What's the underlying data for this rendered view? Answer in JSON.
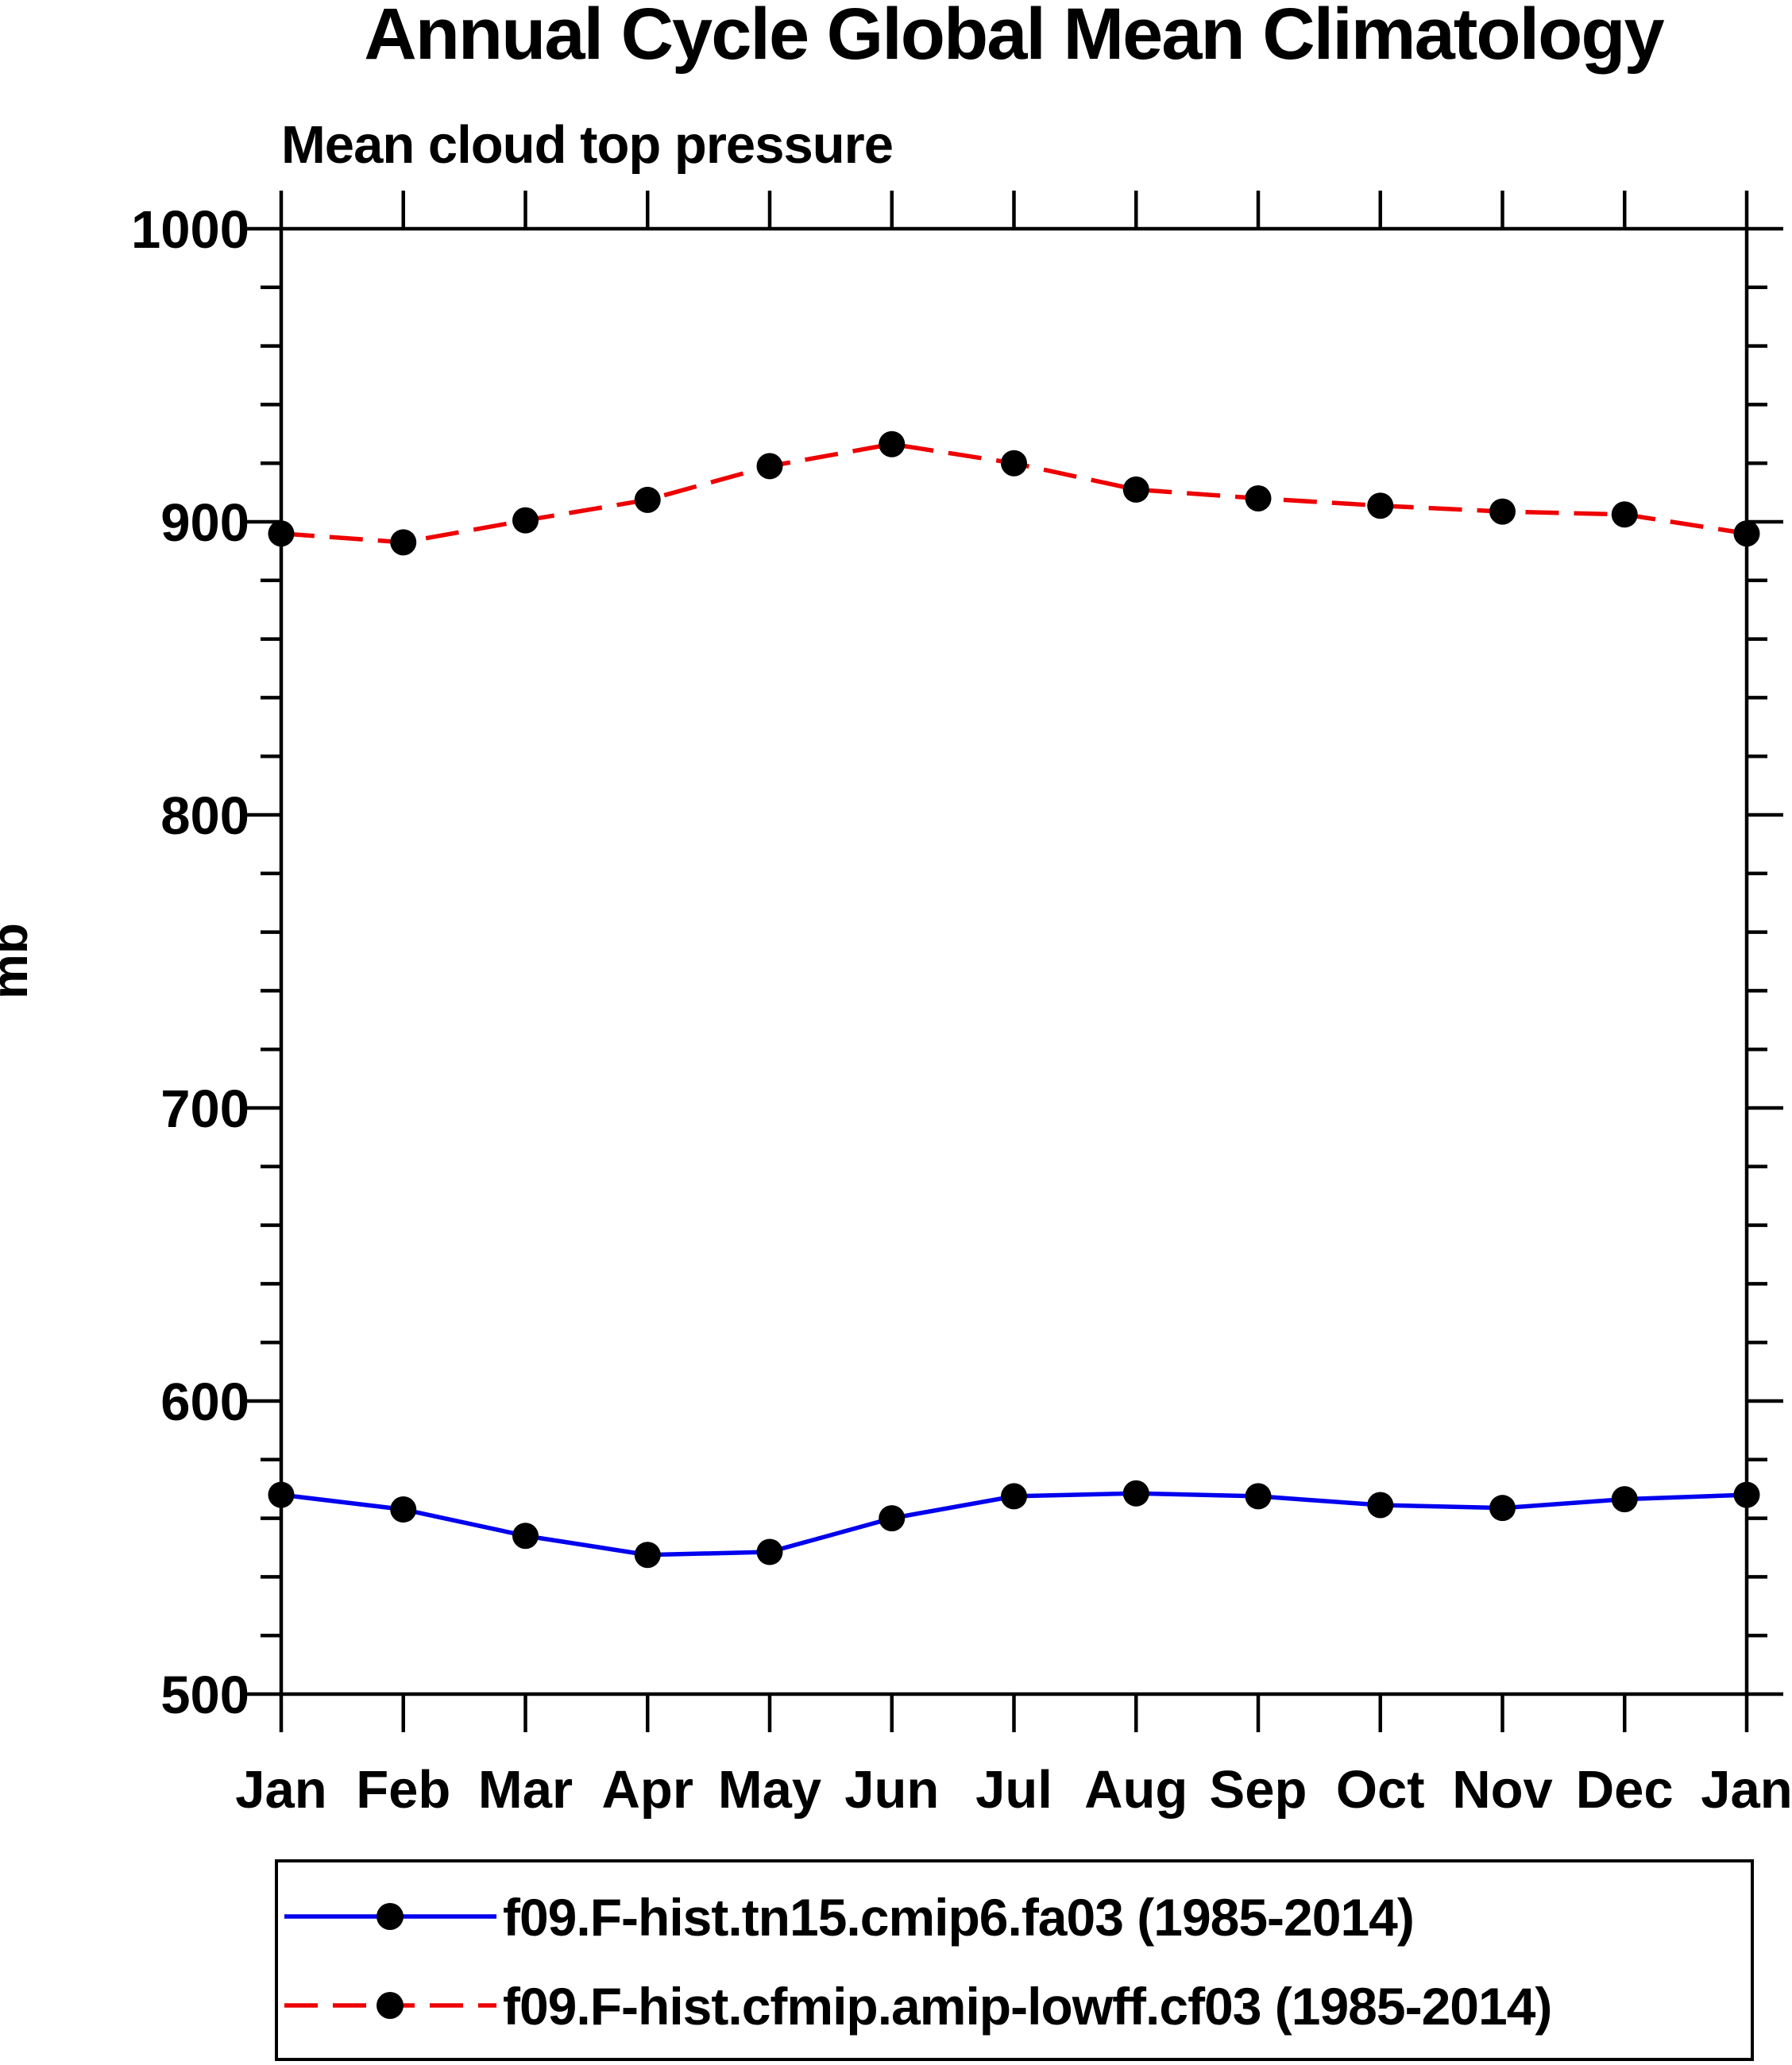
{
  "title": "Annual Cycle Global Mean Climatology",
  "subtitle": "Mean cloud top pressure",
  "y_axis": {
    "unit_label": "mb",
    "min": 500,
    "max": 1000,
    "major_tick_interval": 100,
    "minor_tick_interval": 20
  },
  "chart_data": {
    "type": "line",
    "title": "Annual Cycle Global Mean Climatology",
    "subtitle": "Mean cloud top pressure",
    "ylabel": "mb",
    "ylim": [
      500,
      1000
    ],
    "grid": false,
    "legend_position": "bottom",
    "x": [
      "Jan",
      "Feb",
      "Mar",
      "Apr",
      "May",
      "Jun",
      "Jul",
      "Aug",
      "Sep",
      "Oct",
      "Nov",
      "Dec",
      "Jan"
    ],
    "y_ticks": [
      1000,
      900,
      800,
      700,
      600,
      500
    ],
    "series": [
      {
        "name": "f09.F-hist.tn15.cmip6.fa03 (1985-2014)",
        "color": "#0000ee",
        "line_style": "solid",
        "marker": "filled-circle",
        "marker_color": "#000000",
        "values": [
          568,
          563,
          554,
          547.5,
          548.5,
          560,
          567.5,
          568.5,
          567.5,
          564.5,
          563.5,
          566.5,
          568
        ]
      },
      {
        "name": "f09.F-hist.cfmip.amip-lowff.cf03 (1985-2014)",
        "color": "#ee0000",
        "line_style": "dashed",
        "marker": "filled-circle",
        "marker_color": "#000000",
        "values": [
          896,
          893,
          900.5,
          907.5,
          919,
          926.5,
          920,
          911,
          908,
          905.5,
          903.5,
          902.5,
          896
        ]
      }
    ]
  }
}
